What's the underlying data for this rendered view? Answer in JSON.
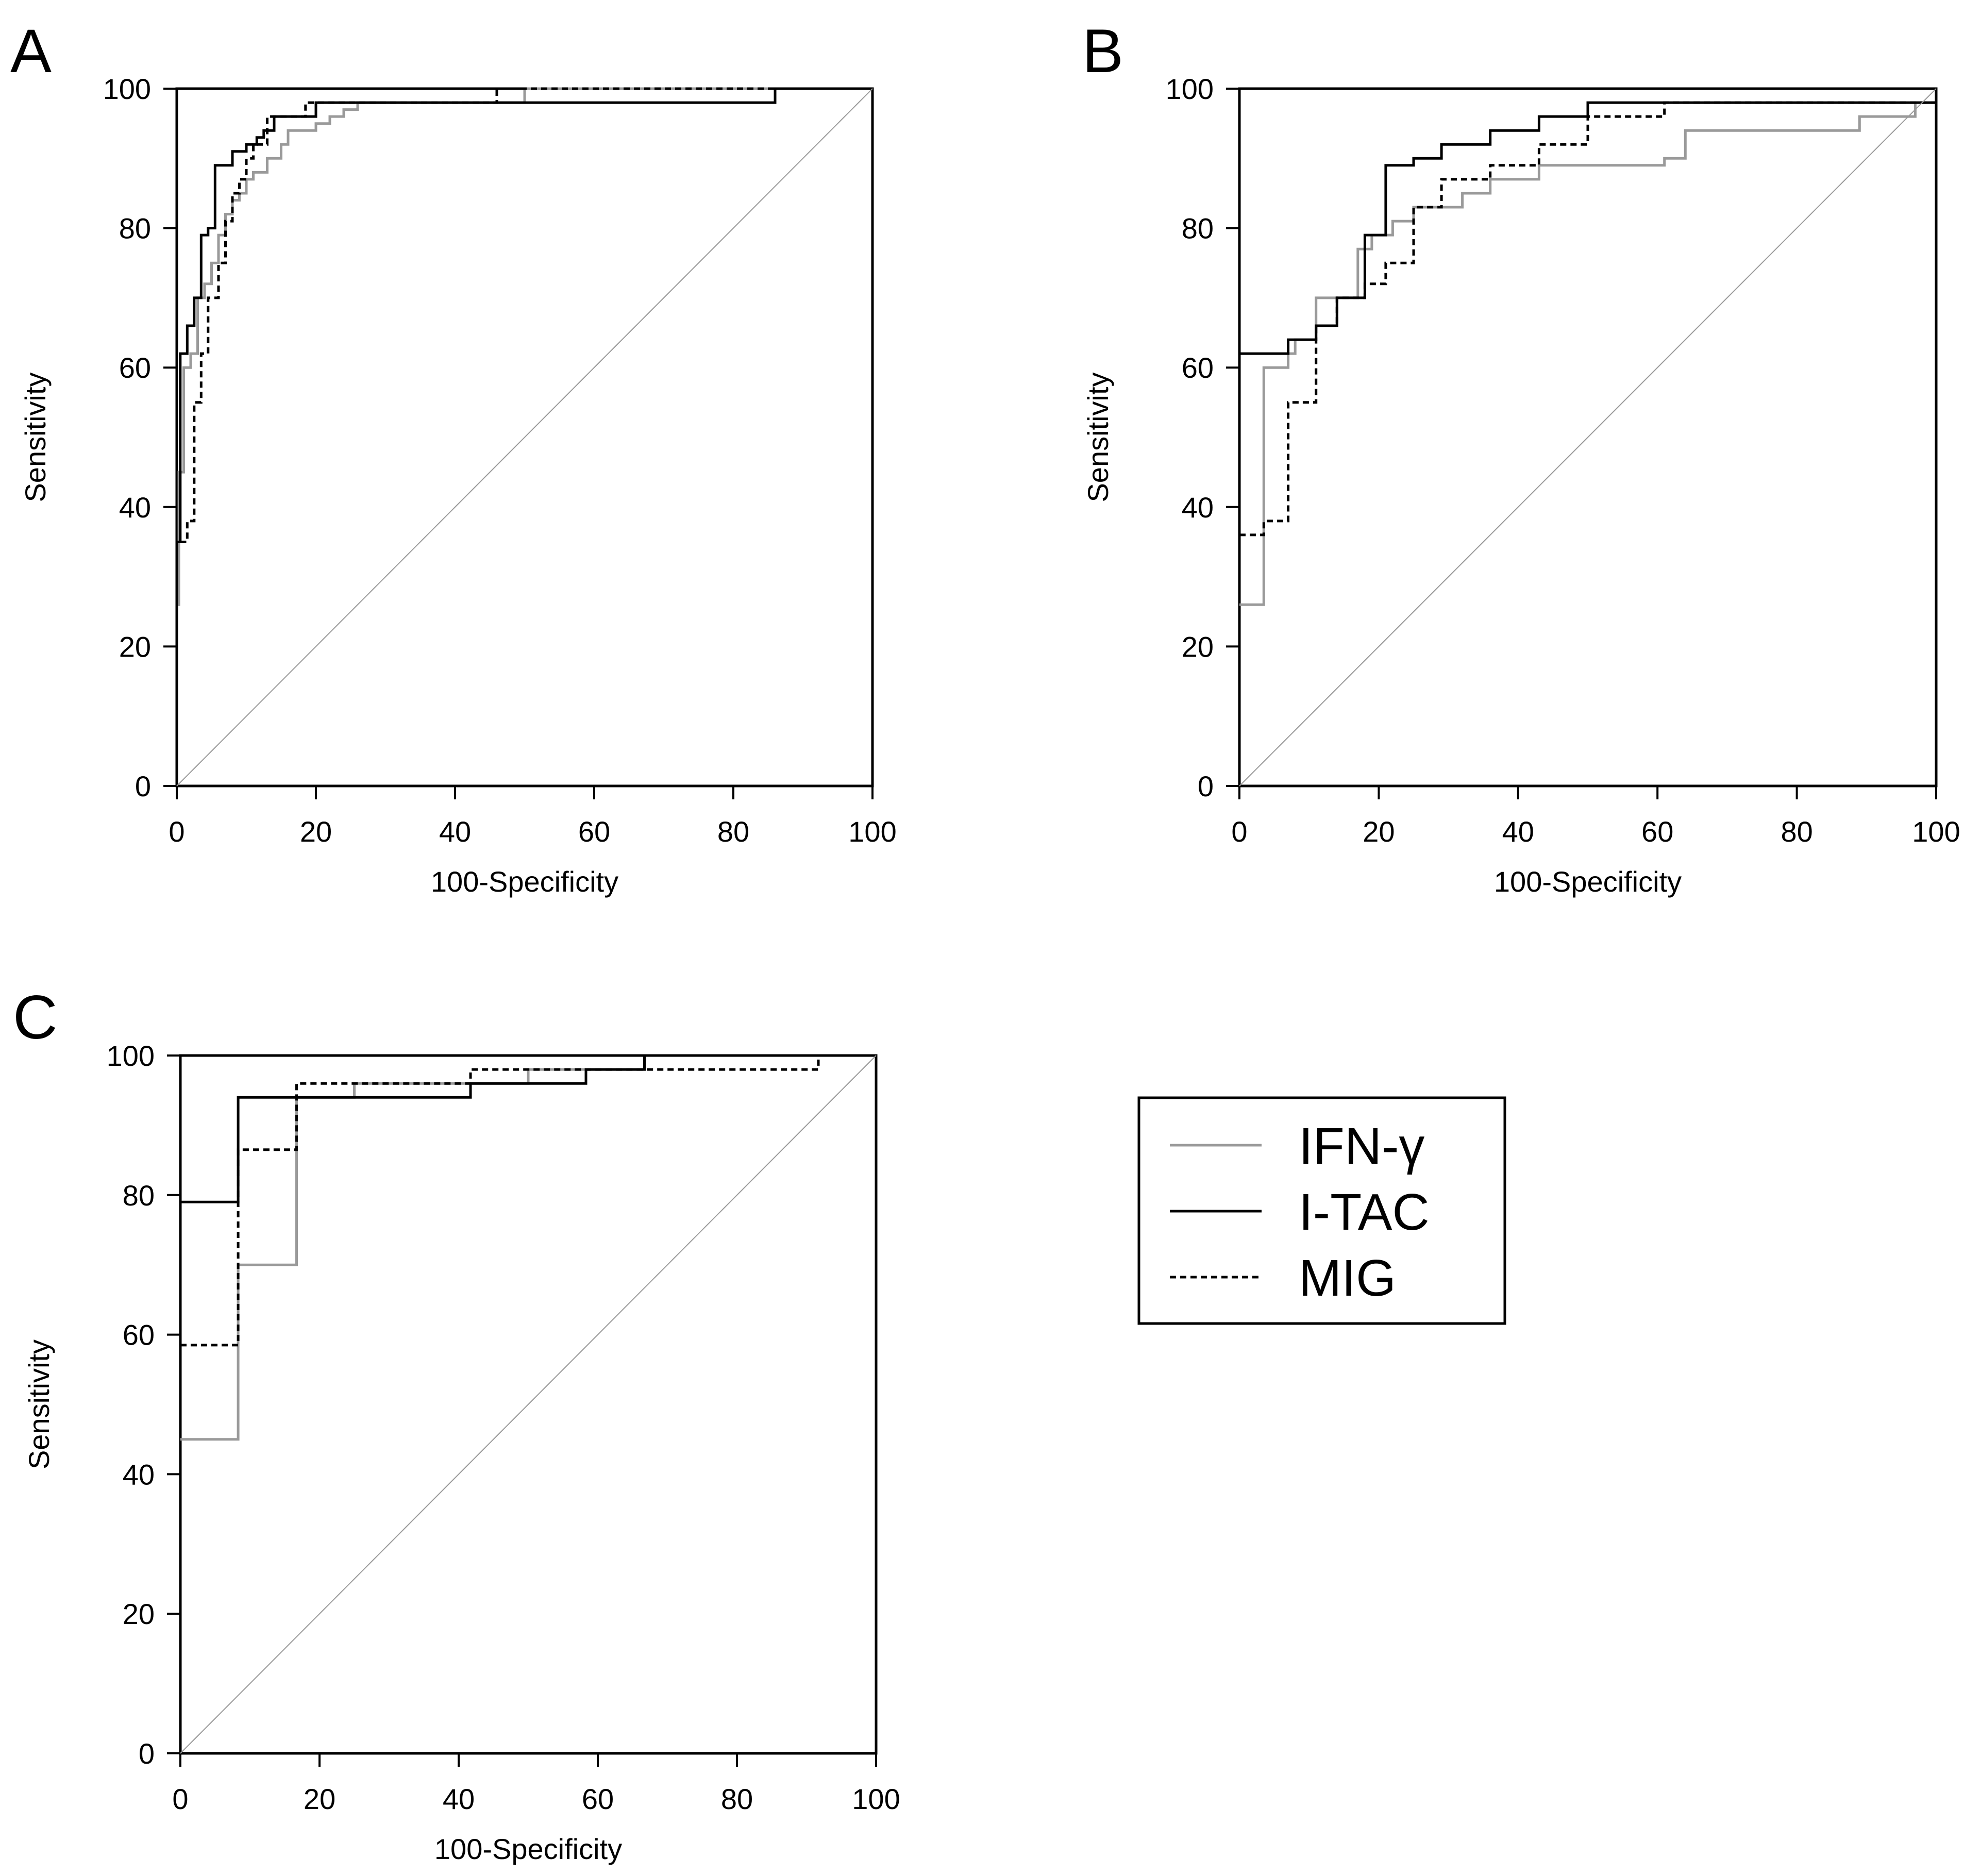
{
  "chart_data": [
    {
      "panel": "A",
      "type": "line",
      "xlabel": "100-Specificity",
      "ylabel": "Sensitivity",
      "xlim": [
        0,
        100
      ],
      "ylim": [
        0,
        100
      ],
      "xticks": [
        "0",
        "20",
        "40",
        "60",
        "80",
        "100"
      ],
      "yticks": [
        "0",
        "20",
        "40",
        "60",
        "80",
        "100"
      ],
      "series": [
        {
          "name": "IFN-γ",
          "color": "#9a9a9a",
          "dash": "none",
          "x": [
            0,
            0,
            0.3,
            0.3,
            1,
            1,
            2,
            2,
            3,
            3,
            4,
            4,
            5,
            5,
            6,
            6,
            7,
            7,
            8,
            8,
            9,
            9,
            10,
            10,
            11,
            11,
            13,
            13,
            15,
            15,
            16,
            16,
            20,
            20,
            22,
            22,
            24,
            24,
            26,
            26,
            50,
            50,
            100
          ],
          "y": [
            0,
            26,
            26,
            45,
            45,
            60,
            60,
            62,
            62,
            70,
            70,
            72,
            72,
            75,
            75,
            79,
            79,
            82,
            82,
            84,
            84,
            85,
            85,
            87,
            87,
            88,
            88,
            90,
            90,
            92,
            92,
            94,
            94,
            95,
            95,
            96,
            96,
            97,
            97,
            98,
            98,
            100,
            100
          ]
        },
        {
          "name": "I-TAC",
          "color": "#000000",
          "dash": "none",
          "x": [
            0,
            0,
            0.5,
            0.5,
            1.5,
            1.5,
            2.5,
            2.5,
            3.5,
            3.5,
            4.5,
            4.5,
            5.5,
            5.5,
            8,
            8,
            10,
            10,
            11.5,
            11.5,
            12.5,
            12.5,
            14,
            14,
            20,
            20,
            25,
            25,
            46,
            46,
            86,
            86,
            100
          ],
          "y": [
            0,
            35,
            35,
            62,
            62,
            66,
            66,
            70,
            70,
            79,
            79,
            80,
            80,
            89,
            89,
            91,
            91,
            92,
            92,
            93,
            93,
            94,
            94,
            96,
            96,
            98,
            98,
            98,
            98,
            98,
            98,
            100,
            100
          ]
        },
        {
          "name": "MIG",
          "color": "#000000",
          "dash": "12 8",
          "x": [
            0,
            0,
            1.5,
            1.5,
            2.5,
            2.5,
            3.5,
            3.5,
            4.5,
            4.5,
            6,
            6,
            7,
            7,
            8,
            8,
            9,
            9,
            10,
            10,
            11,
            11,
            13,
            13,
            18.5,
            18.5,
            46,
            46,
            100
          ],
          "y": [
            0,
            35,
            35,
            38,
            38,
            55,
            55,
            62,
            62,
            70,
            70,
            75,
            75,
            81,
            81,
            85,
            85,
            87,
            87,
            90,
            90,
            92,
            92,
            96,
            96,
            98,
            98,
            100,
            100
          ]
        },
        {
          "name": "reference",
          "color": "#9a9a9a",
          "dash": "none",
          "x": [
            0,
            100
          ],
          "y": [
            0,
            100
          ]
        }
      ]
    },
    {
      "panel": "B",
      "type": "line",
      "xlabel": "100-Specificity",
      "ylabel": "Sensitivity",
      "xlim": [
        0,
        100
      ],
      "ylim": [
        0,
        100
      ],
      "xticks": [
        "0",
        "20",
        "40",
        "60",
        "80",
        "100"
      ],
      "yticks": [
        "0",
        "20",
        "40",
        "60",
        "80",
        "100"
      ],
      "series": [
        {
          "name": "IFN-γ",
          "color": "#9a9a9a",
          "dash": "none",
          "x": [
            0,
            3.5,
            3.5,
            7,
            7,
            8,
            8,
            11,
            11,
            17,
            17,
            19,
            19,
            22,
            22,
            25,
            25,
            28,
            28,
            32,
            32,
            36,
            36,
            43,
            43,
            61,
            61,
            64,
            64,
            82,
            82,
            89,
            89,
            97,
            97,
            100,
            100
          ],
          "y": [
            26,
            26,
            60,
            60,
            62,
            62,
            64,
            64,
            70,
            70,
            77,
            77,
            79,
            79,
            81,
            81,
            83,
            83,
            83,
            83,
            85,
            85,
            87,
            87,
            89,
            89,
            90,
            90,
            94,
            94,
            94,
            94,
            96,
            96,
            98,
            98,
            100
          ]
        },
        {
          "name": "I-TAC",
          "color": "#000000",
          "dash": "none",
          "x": [
            0,
            7,
            7,
            11,
            11,
            14,
            14,
            18,
            18,
            21,
            21,
            25,
            25,
            29,
            29,
            36,
            36,
            43,
            43,
            50,
            50,
            57,
            57,
            100,
            100
          ],
          "y": [
            62,
            62,
            64,
            64,
            66,
            66,
            70,
            70,
            79,
            79,
            89,
            89,
            90,
            90,
            92,
            92,
            94,
            94,
            96,
            96,
            98,
            98,
            98,
            98,
            100
          ]
        },
        {
          "name": "MIG",
          "color": "#000000",
          "dash": "12 8",
          "x": [
            0,
            3.5,
            3.5,
            7,
            7,
            11,
            11,
            14,
            14,
            18,
            18,
            21,
            21,
            25,
            25,
            29,
            29,
            36,
            36,
            43,
            43,
            50,
            50,
            61,
            61,
            100
          ],
          "y": [
            36,
            36,
            38,
            38,
            55,
            55,
            66,
            66,
            70,
            70,
            72,
            72,
            75,
            75,
            83,
            83,
            87,
            87,
            89,
            89,
            92,
            92,
            96,
            96,
            98,
            98
          ]
        },
        {
          "name": "reference",
          "color": "#9a9a9a",
          "dash": "none",
          "x": [
            0,
            100
          ],
          "y": [
            0,
            100
          ]
        }
      ]
    },
    {
      "panel": "C",
      "type": "line",
      "xlabel": "100-Specificity",
      "ylabel": "Sensitivity",
      "xlim": [
        0,
        100
      ],
      "ylim": [
        0,
        100
      ],
      "xticks": [
        "0",
        "20",
        "40",
        "60",
        "80",
        "100"
      ],
      "yticks": [
        "0",
        "20",
        "40",
        "60",
        "80",
        "100"
      ],
      "series": [
        {
          "name": "IFN-γ",
          "color": "#9a9a9a",
          "dash": "none",
          "x": [
            0,
            8.3,
            8.3,
            16.7,
            16.7,
            25,
            25,
            50,
            50,
            66.7,
            66.7,
            100
          ],
          "y": [
            45,
            45,
            70,
            70,
            94,
            94,
            96,
            96,
            98,
            98,
            100,
            100
          ]
        },
        {
          "name": "I-TAC",
          "color": "#000000",
          "dash": "none",
          "x": [
            0,
            8.3,
            8.3,
            41.7,
            41.7,
            58.3,
            58.3,
            66.7,
            66.7,
            100
          ],
          "y": [
            79,
            79,
            94,
            94,
            96,
            96,
            98,
            98,
            100,
            100
          ]
        },
        {
          "name": "MIG",
          "color": "#000000",
          "dash": "12 8",
          "x": [
            0,
            8.3,
            8.3,
            16.7,
            16.7,
            41.7,
            41.7,
            91.7,
            91.7,
            100
          ],
          "y": [
            58.5,
            58.5,
            86.5,
            86.5,
            96,
            96,
            98,
            98,
            100,
            100
          ]
        },
        {
          "name": "reference",
          "color": "#9a9a9a",
          "dash": "none",
          "x": [
            0,
            100
          ],
          "y": [
            0,
            100
          ]
        }
      ]
    }
  ],
  "legend": {
    "items": [
      {
        "label": "IFN-γ",
        "color": "#9a9a9a",
        "dash": "none"
      },
      {
        "label": "I-TAC",
        "color": "#000000",
        "dash": "none"
      },
      {
        "label": "MIG",
        "color": "#000000",
        "dash": "12 8"
      }
    ]
  }
}
